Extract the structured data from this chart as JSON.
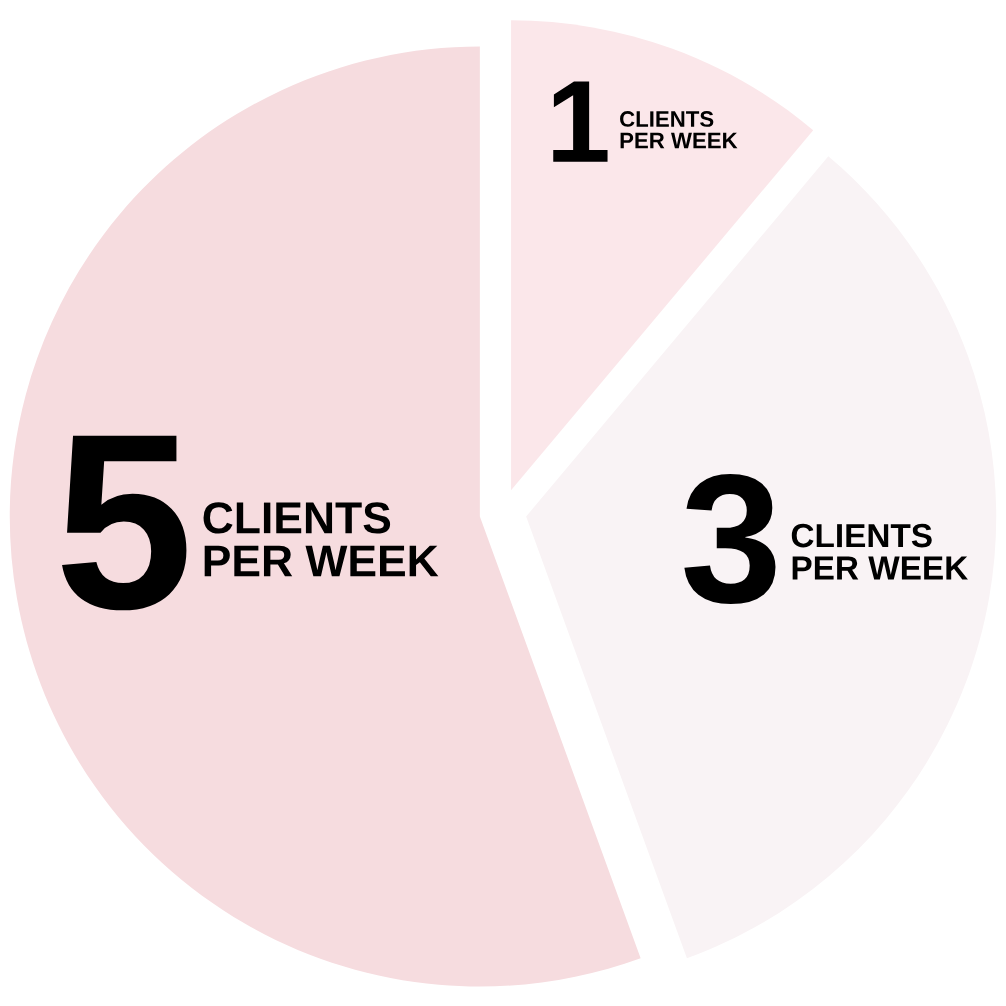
{
  "chart_data": {
    "type": "pie",
    "categories": [
      "CLIENTS\nPER WEEK",
      "CLIENTS\nPER WEEK",
      "CLIENTS\nPER WEEK"
    ],
    "values": [
      1,
      3,
      5
    ],
    "colors": [
      "#fbe7ea",
      "#f9f3f5",
      "#f6dcdf"
    ],
    "data_labels": true
  }
}
